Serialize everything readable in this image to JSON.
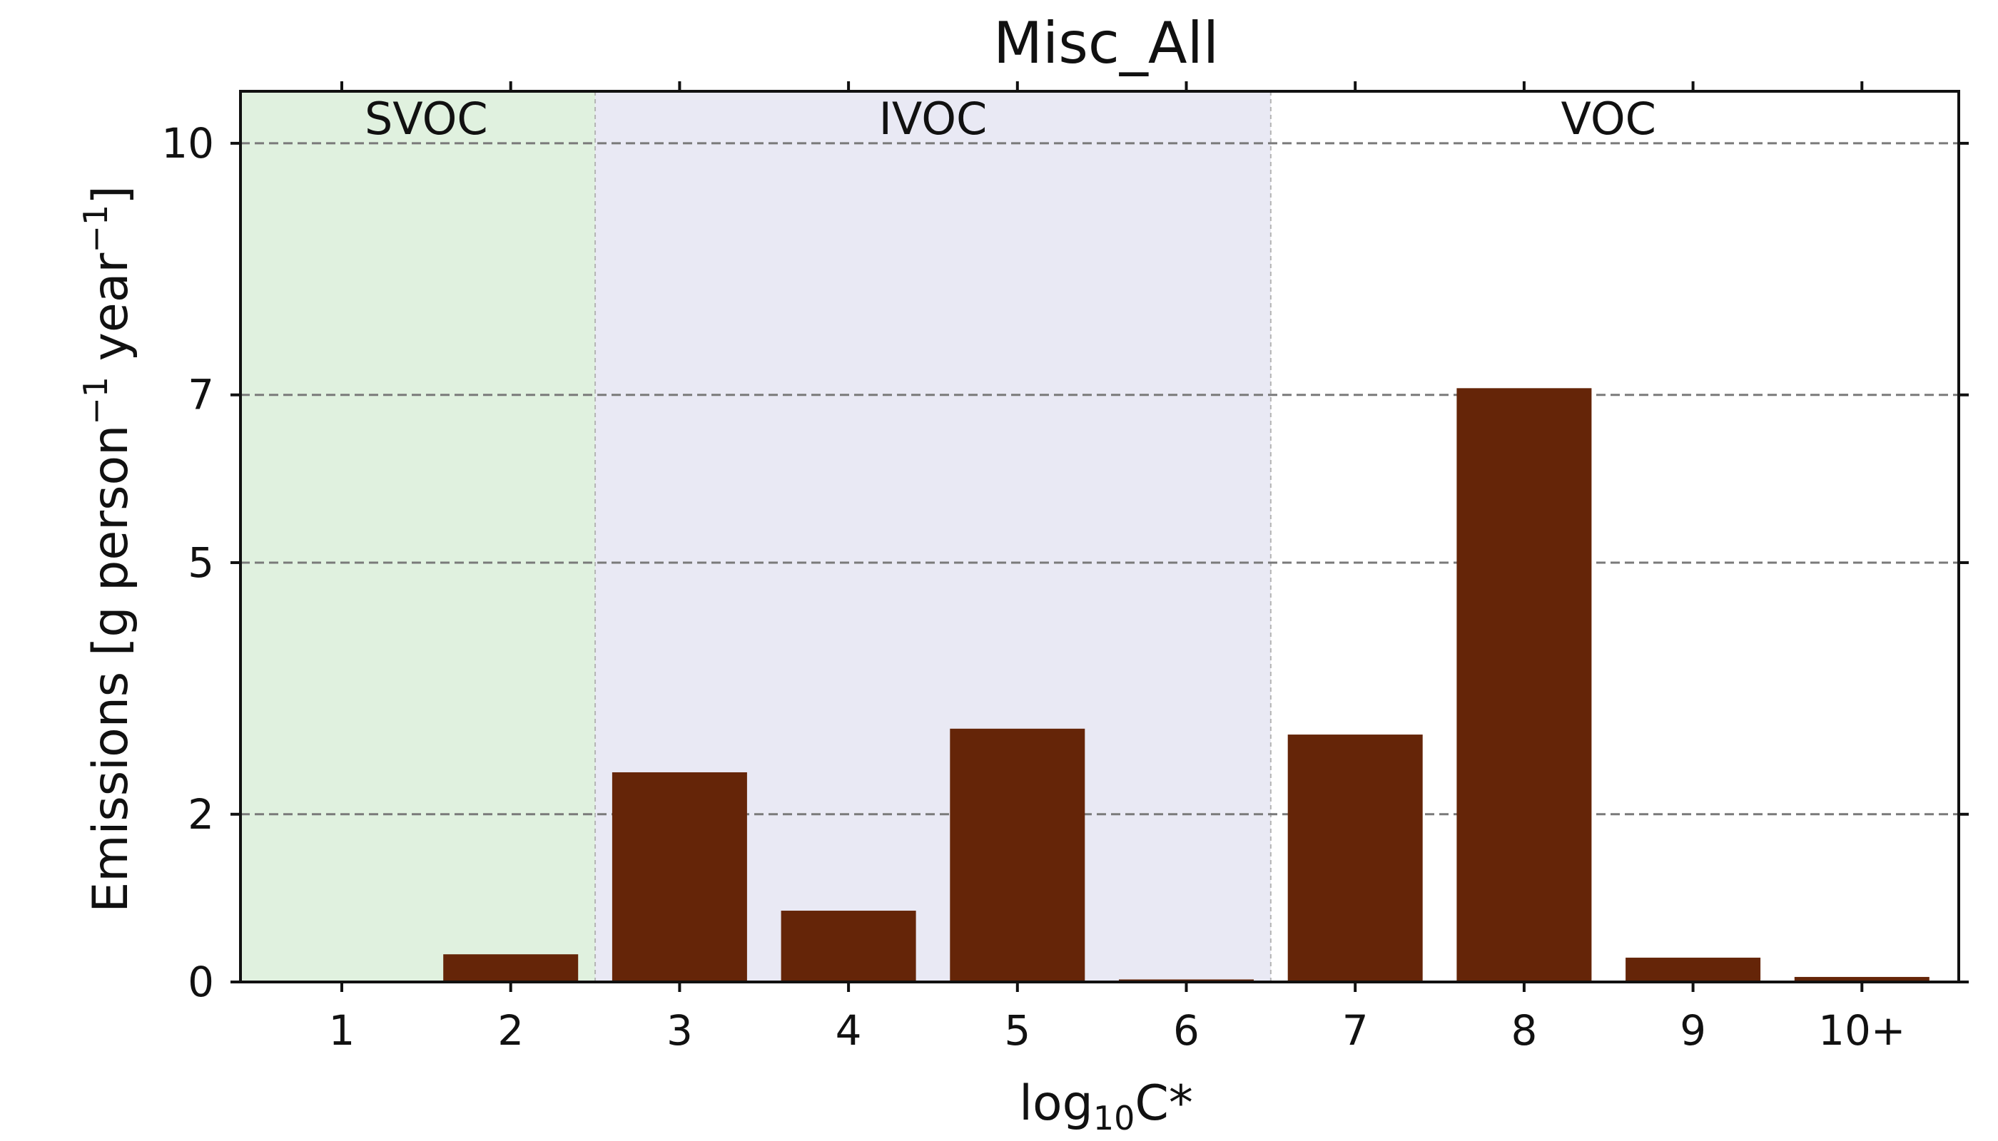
{
  "chart_data": {
    "type": "bar",
    "title": "Misc_All",
    "xlabel": {
      "main": "log",
      "sub": "10",
      "rest": "C*"
    },
    "ylabel": {
      "part1": "Emissions [g person",
      "sup1": "−1",
      "part2": " year",
      "sup2": "−1",
      "part3": "]"
    },
    "categories": [
      "1",
      "2",
      "3",
      "4",
      "5",
      "6",
      "7",
      "8",
      "9",
      "10+"
    ],
    "values": [
      0.0,
      0.33,
      2.5,
      0.85,
      3.02,
      0.03,
      2.95,
      7.08,
      0.29,
      0.06
    ],
    "y_ticks": [
      0,
      2,
      5,
      7,
      10
    ],
    "ylim": [
      0,
      10.62
    ],
    "grid": "horizontal dashed at y ticks",
    "bar_color": "#652508",
    "regions": [
      {
        "label": "SVOC",
        "from": "1",
        "to": "2",
        "color": "#e0f1df"
      },
      {
        "label": "IVOC",
        "from": "3",
        "to": "6",
        "color": "#e9e9f4"
      },
      {
        "label": "VOC",
        "from": "7",
        "to": "10+",
        "color": "#ffffff"
      }
    ]
  }
}
